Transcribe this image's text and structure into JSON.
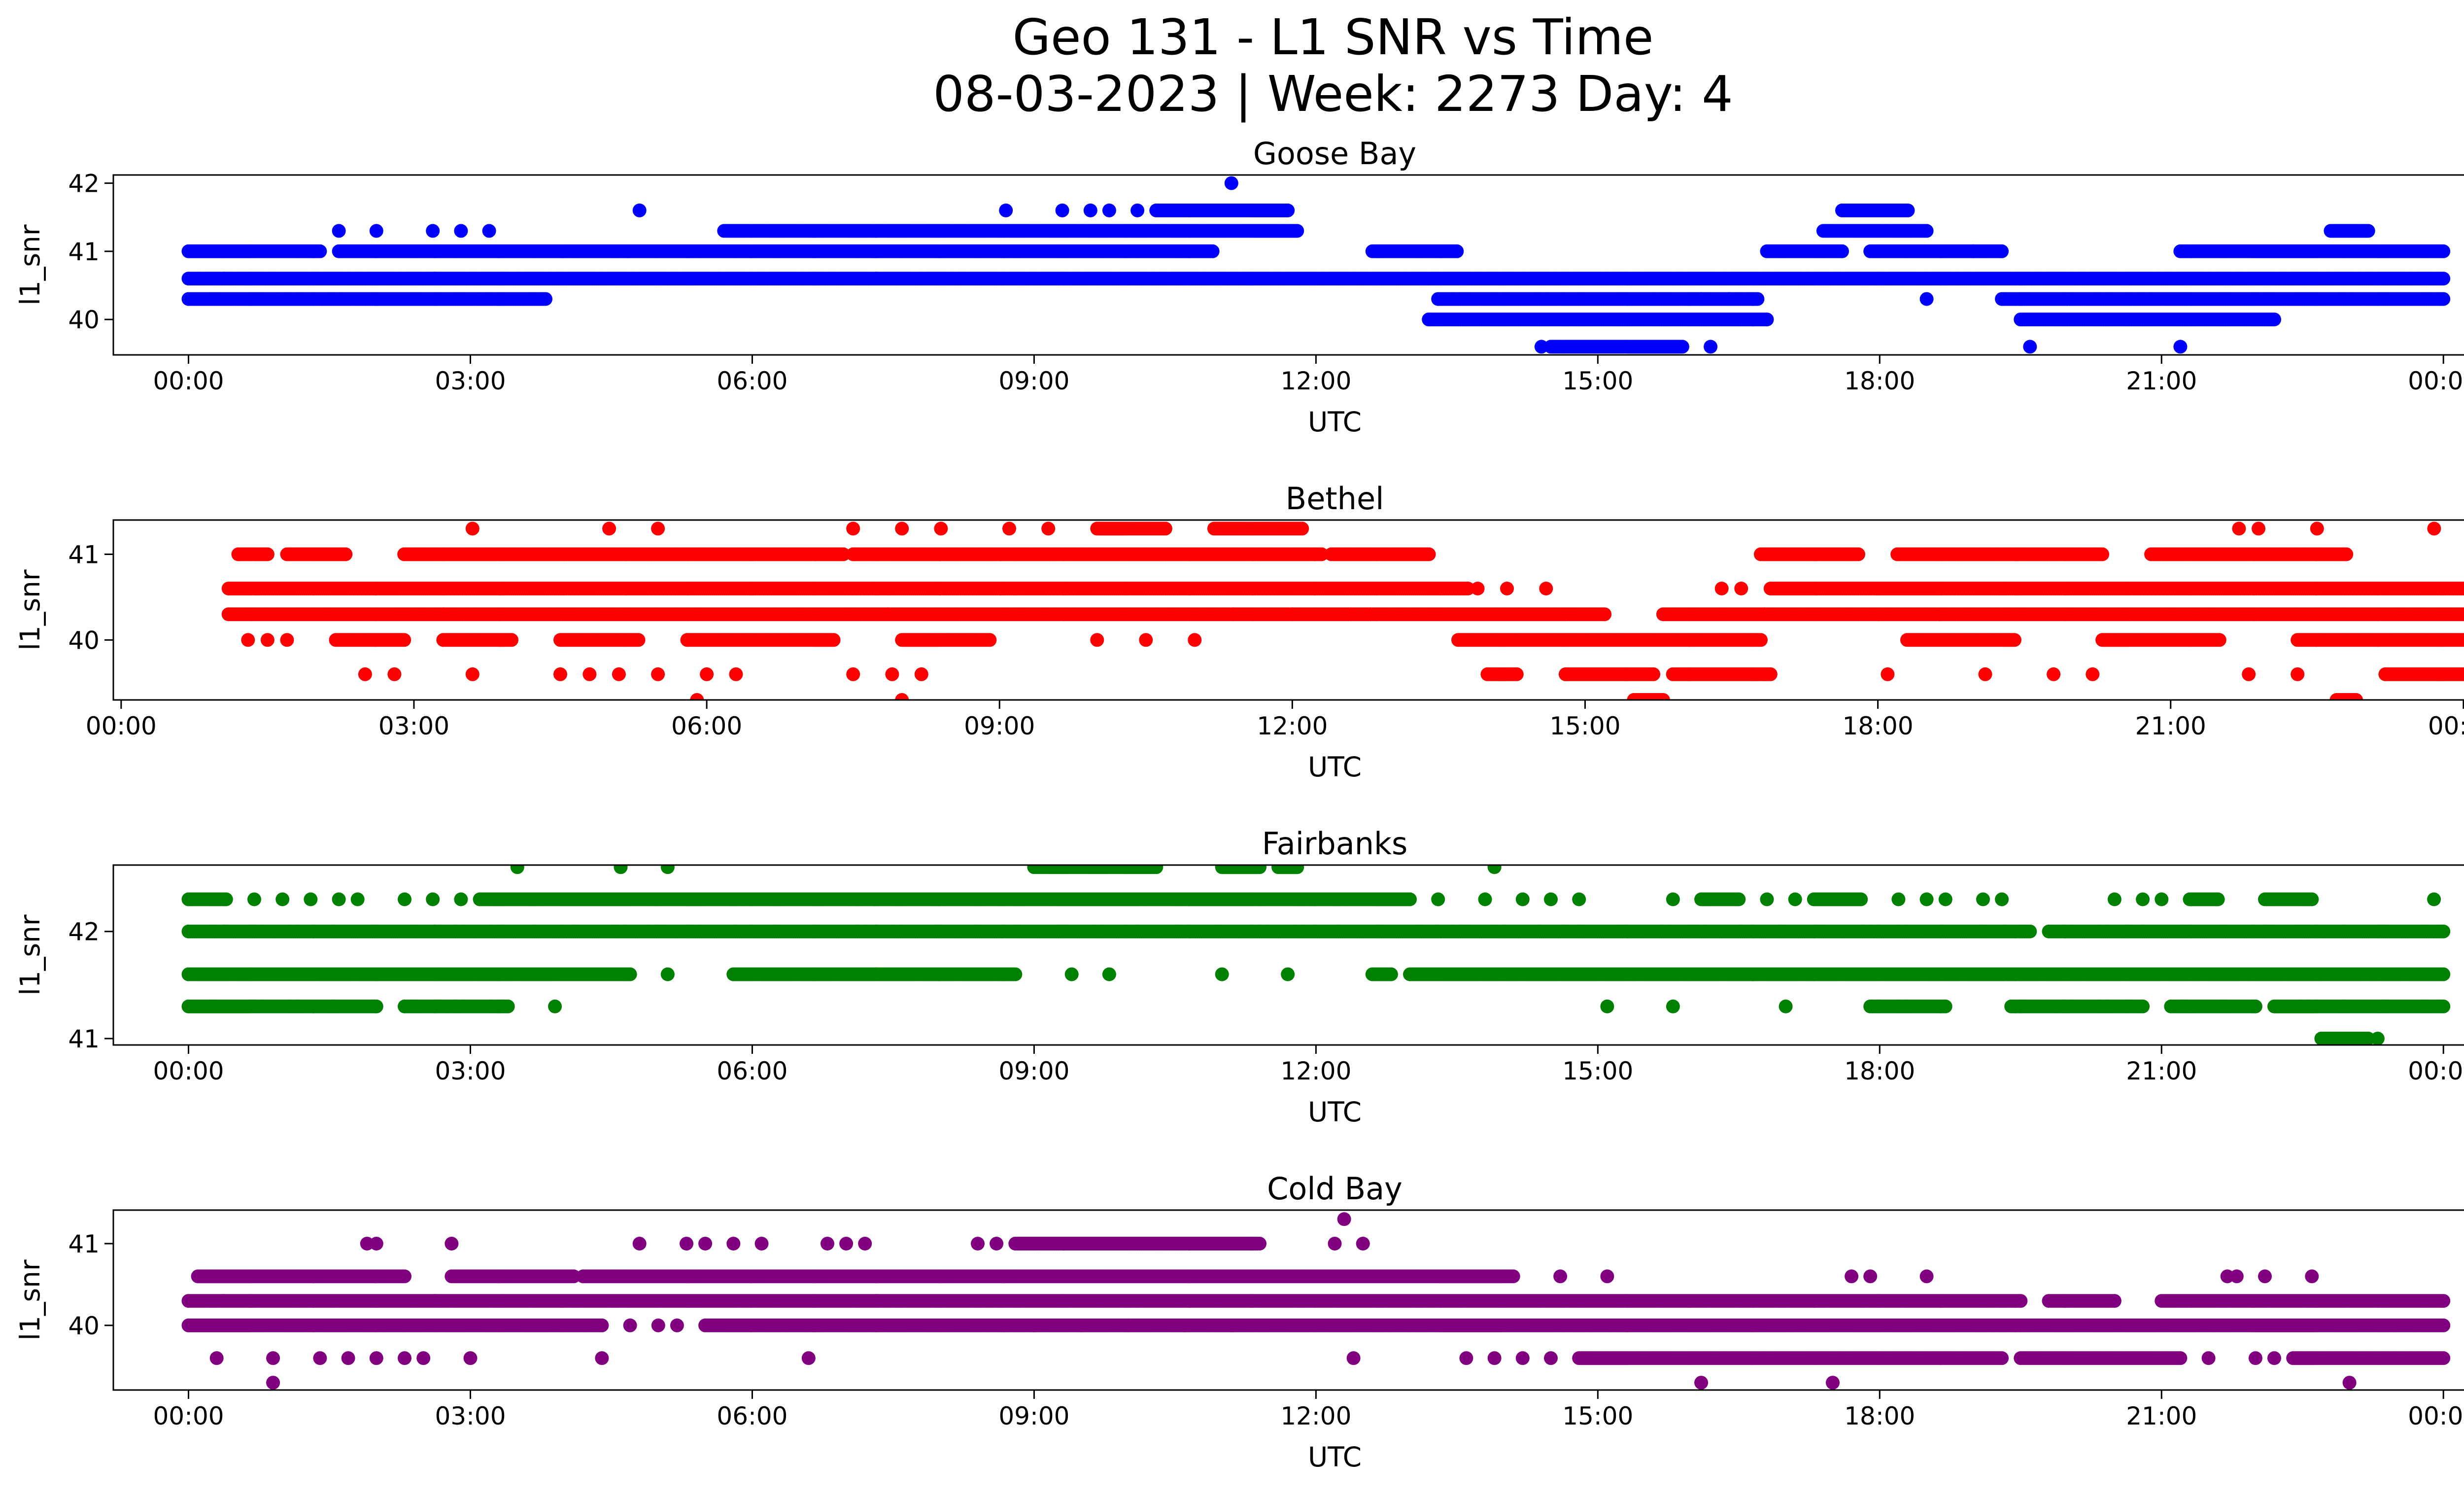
{
  "figure": {
    "title_line1": "Geo 131 - L1 SNR vs Time",
    "title_line2": "08-03-2023 | Week: 2273 Day: 4"
  },
  "chart_data": [
    {
      "type": "scatter",
      "title": "Goose Bay",
      "xlabel": "UTC",
      "ylabel": "l1_snr",
      "color": "#0000ff",
      "x_range_hours": [
        -0.8,
        25.2
      ],
      "x_ticks": [
        "00:00",
        "03:00",
        "06:00",
        "09:00",
        "12:00",
        "15:00",
        "18:00",
        "21:00",
        "00:00"
      ],
      "x_tick_hours": [
        0,
        3,
        6,
        9,
        12,
        15,
        18,
        21,
        24
      ],
      "ylim": [
        39.48,
        42.12
      ],
      "y_ticks": [
        40,
        41,
        42
      ],
      "levels": [
        {
          "y": 40.3,
          "segments": [
            [
              0.0,
              3.8
            ],
            [
              13.3,
              16.7
            ],
            [
              19.3,
              24.0
            ]
          ]
        },
        {
          "y": 40.6,
          "segments": [
            [
              0.0,
              24.0
            ]
          ]
        },
        {
          "y": 41.0,
          "segments": [
            [
              0.0,
              1.4
            ],
            [
              1.6,
              10.9
            ],
            [
              12.6,
              13.5
            ],
            [
              16.8,
              17.6
            ],
            [
              17.9,
              19.3
            ],
            [
              21.2,
              24.0
            ]
          ]
        },
        {
          "y": 41.3,
          "segments": [
            [
              5.7,
              11.8
            ],
            [
              17.4,
              18.5
            ],
            [
              22.8,
              23.2
            ]
          ]
        },
        {
          "y": 40.0,
          "segments": [
            [
              13.2,
              16.8
            ],
            [
              19.5,
              22.2
            ]
          ]
        },
        {
          "y": 41.6,
          "segments": [
            [
              10.3,
              11.7
            ],
            [
              17.6,
              18.3
            ]
          ]
        },
        {
          "y": 39.6,
          "segments": [
            [
              14.5,
              15.9
            ]
          ]
        }
      ],
      "points": [
        [
          11.1,
          42.0
        ],
        [
          4.8,
          41.6
        ],
        [
          8.7,
          41.6
        ],
        [
          9.3,
          41.6
        ],
        [
          9.6,
          41.6
        ],
        [
          9.8,
          41.6
        ],
        [
          10.1,
          41.6
        ],
        [
          1.6,
          41.3
        ],
        [
          2.0,
          41.3
        ],
        [
          2.6,
          41.3
        ],
        [
          2.9,
          41.3
        ],
        [
          3.2,
          41.3
        ],
        [
          23.0,
          41.3
        ],
        [
          16.1,
          40.3
        ],
        [
          16.4,
          40.3
        ],
        [
          18.5,
          40.3
        ],
        [
          19.0,
          41.0
        ],
        [
          14.4,
          39.6
        ],
        [
          16.2,
          39.6
        ],
        [
          19.6,
          39.6
        ],
        [
          21.2,
          39.6
        ]
      ]
    },
    {
      "type": "scatter",
      "title": "Bethel",
      "xlabel": "UTC",
      "ylabel": "l1_snr",
      "color": "#ff0000",
      "x_range_hours": [
        -0.08,
        24.95
      ],
      "x_ticks": [
        "00:00",
        "03:00",
        "06:00",
        "09:00",
        "12:00",
        "15:00",
        "18:00",
        "21:00",
        "00:00"
      ],
      "x_tick_hours": [
        0,
        3,
        6,
        9,
        12,
        15,
        18,
        21,
        24
      ],
      "ylim": [
        39.3,
        41.4
      ],
      "y_ticks": [
        40,
        41
      ],
      "levels": [
        {
          "y": 40.6,
          "segments": [
            [
              1.1,
              13.8
            ],
            [
              16.9,
              24.0
            ]
          ]
        },
        {
          "y": 40.3,
          "segments": [
            [
              1.1,
              15.2
            ],
            [
              15.8,
              24.0
            ]
          ]
        },
        {
          "y": 41.0,
          "segments": [
            [
              1.2,
              1.5
            ],
            [
              1.7,
              2.3
            ],
            [
              2.9,
              7.4
            ],
            [
              7.5,
              12.3
            ],
            [
              12.4,
              13.4
            ],
            [
              16.8,
              17.8
            ],
            [
              18.2,
              20.3
            ],
            [
              20.8,
              22.8
            ]
          ]
        },
        {
          "y": 40.0,
          "segments": [
            [
              2.2,
              2.9
            ],
            [
              3.3,
              4.0
            ],
            [
              4.5,
              5.3
            ],
            [
              5.8,
              7.3
            ],
            [
              8.0,
              8.9
            ],
            [
              13.7,
              16.8
            ],
            [
              18.3,
              19.4
            ],
            [
              20.3,
              21.5
            ],
            [
              22.3,
              24.0
            ]
          ]
        },
        {
          "y": 39.6,
          "segments": [
            [
              14.0,
              14.3
            ],
            [
              14.8,
              15.7
            ],
            [
              15.9,
              16.9
            ],
            [
              23.2,
              24.0
            ]
          ]
        },
        {
          "y": 41.3,
          "segments": [
            [
              10.0,
              10.7
            ],
            [
              11.2,
              12.1
            ]
          ]
        },
        {
          "y": 39.3,
          "segments": [
            [
              15.5,
              15.8
            ],
            [
              22.7,
              22.9
            ]
          ]
        }
      ],
      "points": [
        [
          3.6,
          41.3
        ],
        [
          5.0,
          41.3
        ],
        [
          5.5,
          41.3
        ],
        [
          7.5,
          41.3
        ],
        [
          8.0,
          41.3
        ],
        [
          8.4,
          41.3
        ],
        [
          9.1,
          41.3
        ],
        [
          9.5,
          41.3
        ],
        [
          21.7,
          41.3
        ],
        [
          21.9,
          41.3
        ],
        [
          22.5,
          41.3
        ],
        [
          23.7,
          41.3
        ],
        [
          1.3,
          40.0
        ],
        [
          1.5,
          40.0
        ],
        [
          1.7,
          40.0
        ],
        [
          2.5,
          39.6
        ],
        [
          2.8,
          39.6
        ],
        [
          3.6,
          39.6
        ],
        [
          4.5,
          39.6
        ],
        [
          4.8,
          39.6
        ],
        [
          5.1,
          39.6
        ],
        [
          5.5,
          39.6
        ],
        [
          6.0,
          39.6
        ],
        [
          6.3,
          39.6
        ],
        [
          7.5,
          39.6
        ],
        [
          7.9,
          39.6
        ],
        [
          8.2,
          39.6
        ],
        [
          18.1,
          39.6
        ],
        [
          19.1,
          39.6
        ],
        [
          19.8,
          39.6
        ],
        [
          20.2,
          39.6
        ],
        [
          21.8,
          39.6
        ],
        [
          22.3,
          39.6
        ],
        [
          5.9,
          39.3
        ],
        [
          8.0,
          39.3
        ],
        [
          13.9,
          40.6
        ],
        [
          14.2,
          40.6
        ],
        [
          14.6,
          40.6
        ],
        [
          16.4,
          40.6
        ],
        [
          16.6,
          40.6
        ],
        [
          10.0,
          40.0
        ],
        [
          10.5,
          40.0
        ],
        [
          11.0,
          40.0
        ],
        [
          12.6,
          40.3
        ],
        [
          12.8,
          40.3
        ],
        [
          11.4,
          40.3
        ],
        [
          12.0,
          40.3
        ]
      ]
    },
    {
      "type": "scatter",
      "title": "Fairbanks",
      "xlabel": "UTC",
      "ylabel": "l1_snr",
      "color": "#008000",
      "x_range_hours": [
        -0.8,
        25.2
      ],
      "x_ticks": [
        "00:00",
        "03:00",
        "06:00",
        "09:00",
        "12:00",
        "15:00",
        "18:00",
        "21:00",
        "00:00"
      ],
      "x_tick_hours": [
        0,
        3,
        6,
        9,
        12,
        15,
        18,
        21,
        24
      ],
      "ylim": [
        40.94,
        42.62
      ],
      "y_ticks": [
        41,
        42
      ],
      "levels": [
        {
          "y": 42.0,
          "segments": [
            [
              0.0,
              19.6
            ],
            [
              19.8,
              24.0
            ]
          ]
        },
        {
          "y": 41.6,
          "segments": [
            [
              0.0,
              4.7
            ],
            [
              5.8,
              8.8
            ],
            [
              12.6,
              12.8
            ],
            [
              13.0,
              24.0
            ]
          ]
        },
        {
          "y": 42.3,
          "segments": [
            [
              0.0,
              0.4
            ],
            [
              3.1,
              13.0
            ],
            [
              16.1,
              16.5
            ],
            [
              17.3,
              17.8
            ],
            [
              21.3,
              21.6
            ],
            [
              22.1,
              22.6
            ]
          ]
        },
        {
          "y": 41.3,
          "segments": [
            [
              0.0,
              2.0
            ],
            [
              2.3,
              3.4
            ],
            [
              17.9,
              18.7
            ],
            [
              19.4,
              20.8
            ],
            [
              21.1,
              22.0
            ],
            [
              22.2,
              24.0
            ]
          ]
        },
        {
          "y": 42.6,
          "segments": [
            [
              9.0,
              10.3
            ],
            [
              11.0,
              11.4
            ],
            [
              11.6,
              11.8
            ]
          ]
        },
        {
          "y": 41.0,
          "segments": [
            [
              22.7,
              23.2
            ]
          ]
        }
      ],
      "points": [
        [
          3.5,
          42.6
        ],
        [
          4.6,
          42.6
        ],
        [
          5.1,
          42.6
        ],
        [
          13.9,
          42.6
        ],
        [
          0.7,
          42.3
        ],
        [
          1.0,
          42.3
        ],
        [
          1.3,
          42.3
        ],
        [
          1.6,
          42.3
        ],
        [
          1.8,
          42.3
        ],
        [
          2.3,
          42.3
        ],
        [
          2.6,
          42.3
        ],
        [
          2.9,
          42.3
        ],
        [
          13.3,
          42.3
        ],
        [
          13.8,
          42.3
        ],
        [
          14.2,
          42.3
        ],
        [
          14.5,
          42.3
        ],
        [
          14.8,
          42.3
        ],
        [
          15.8,
          42.3
        ],
        [
          16.8,
          42.3
        ],
        [
          17.1,
          42.3
        ],
        [
          18.2,
          42.3
        ],
        [
          18.5,
          42.3
        ],
        [
          18.7,
          42.3
        ],
        [
          19.1,
          42.3
        ],
        [
          19.3,
          42.3
        ],
        [
          20.5,
          42.3
        ],
        [
          20.8,
          42.3
        ],
        [
          21.0,
          42.3
        ],
        [
          23.9,
          42.3
        ],
        [
          5.1,
          41.6
        ],
        [
          9.4,
          41.6
        ],
        [
          9.8,
          41.6
        ],
        [
          11.0,
          41.6
        ],
        [
          11.7,
          41.6
        ],
        [
          3.9,
          41.3
        ],
        [
          15.1,
          41.3
        ],
        [
          15.8,
          41.3
        ],
        [
          17.0,
          41.3
        ],
        [
          23.3,
          41.0
        ]
      ]
    },
    {
      "type": "scatter",
      "title": "Cold Bay",
      "xlabel": "UTC",
      "ylabel": "l1_snr",
      "color": "#800080",
      "x_range_hours": [
        -0.8,
        25.2
      ],
      "x_ticks": [
        "00:00",
        "03:00",
        "06:00",
        "09:00",
        "12:00",
        "15:00",
        "18:00",
        "21:00",
        "00:00"
      ],
      "x_tick_hours": [
        0,
        3,
        6,
        9,
        12,
        15,
        18,
        21,
        24
      ],
      "ylim": [
        39.21,
        41.41
      ],
      "y_ticks": [
        40,
        41
      ],
      "levels": [
        {
          "y": 40.3,
          "segments": [
            [
              0.0,
              19.5
            ],
            [
              19.8,
              20.5
            ],
            [
              21.0,
              24.0
            ]
          ]
        },
        {
          "y": 40.0,
          "segments": [
            [
              0.0,
              4.4
            ],
            [
              5.5,
              24.0
            ]
          ]
        },
        {
          "y": 40.6,
          "segments": [
            [
              0.1,
              2.3
            ],
            [
              2.8,
              4.1
            ],
            [
              4.2,
              14.1
            ]
          ]
        },
        {
          "y": 41.0,
          "segments": [
            [
              8.8,
              11.4
            ]
          ]
        },
        {
          "y": 39.6,
          "segments": [
            [
              14.8,
              19.3
            ],
            [
              19.5,
              21.2
            ],
            [
              22.4,
              24.0
            ]
          ]
        }
      ],
      "points": [
        [
          1.9,
          41.0
        ],
        [
          2.0,
          41.0
        ],
        [
          2.8,
          41.0
        ],
        [
          4.8,
          41.0
        ],
        [
          5.3,
          41.0
        ],
        [
          5.5,
          41.0
        ],
        [
          5.8,
          41.0
        ],
        [
          6.1,
          41.0
        ],
        [
          6.8,
          41.0
        ],
        [
          7.0,
          41.0
        ],
        [
          7.2,
          41.0
        ],
        [
          8.4,
          41.0
        ],
        [
          8.6,
          41.0
        ],
        [
          12.2,
          41.0
        ],
        [
          12.5,
          41.0
        ],
        [
          12.3,
          41.3
        ],
        [
          14.6,
          40.6
        ],
        [
          15.1,
          40.6
        ],
        [
          17.7,
          40.6
        ],
        [
          17.9,
          40.6
        ],
        [
          18.5,
          40.6
        ],
        [
          21.7,
          40.6
        ],
        [
          21.8,
          40.6
        ],
        [
          22.1,
          40.6
        ],
        [
          22.6,
          40.6
        ],
        [
          0.3,
          39.6
        ],
        [
          0.9,
          39.6
        ],
        [
          1.4,
          39.6
        ],
        [
          1.7,
          39.6
        ],
        [
          2.0,
          39.6
        ],
        [
          2.3,
          39.6
        ],
        [
          2.5,
          39.6
        ],
        [
          3.0,
          39.6
        ],
        [
          4.4,
          39.6
        ],
        [
          6.6,
          39.6
        ],
        [
          12.4,
          39.6
        ],
        [
          13.6,
          39.6
        ],
        [
          13.9,
          39.6
        ],
        [
          14.2,
          39.6
        ],
        [
          14.5,
          39.6
        ],
        [
          21.5,
          39.6
        ],
        [
          22.0,
          39.6
        ],
        [
          22.2,
          39.6
        ],
        [
          0.9,
          39.3
        ],
        [
          16.1,
          39.3
        ],
        [
          17.5,
          39.3
        ],
        [
          23.0,
          39.3
        ],
        [
          4.7,
          40.0
        ],
        [
          5.0,
          40.0
        ],
        [
          5.2,
          40.0
        ],
        [
          9.0,
          40.0
        ],
        [
          9.5,
          40.0
        ],
        [
          10.0,
          40.0
        ],
        [
          10.6,
          40.0
        ],
        [
          11.1,
          40.0
        ]
      ]
    }
  ]
}
